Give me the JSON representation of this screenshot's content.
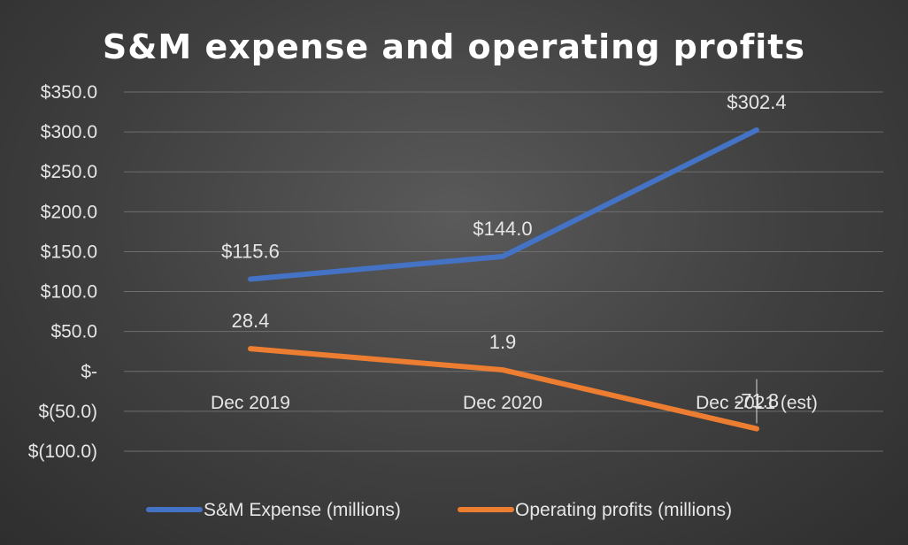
{
  "chart_data": {
    "type": "line",
    "title": "S&M expense and operating profits",
    "categories": [
      "Dec 2019",
      "Dec 2020",
      "Dec 2021 (est)"
    ],
    "ylim": [
      -100,
      350
    ],
    "yticks": [
      350,
      300,
      250,
      200,
      150,
      100,
      50,
      0,
      -50,
      -100
    ],
    "ytick_labels": [
      "$350.0",
      "$300.0",
      "$250.0",
      "$200.0",
      "$150.0",
      "$100.0",
      "$50.0",
      "$-",
      "$(50.0)",
      "$(100.0)"
    ],
    "grid": true,
    "legend_position": "bottom",
    "series": [
      {
        "name": "S&M Expense (millions)",
        "values": [
          115.6,
          144.0,
          302.4
        ],
        "labels": [
          "$115.6",
          "$144.0",
          "$302.4"
        ],
        "color": "#4472C4"
      },
      {
        "name": "Operating profits (millions)",
        "values": [
          28.4,
          1.9,
          -71.8
        ],
        "labels": [
          "28.4",
          "1.9",
          "-71.8"
        ],
        "color": "#ED7D31"
      }
    ]
  }
}
